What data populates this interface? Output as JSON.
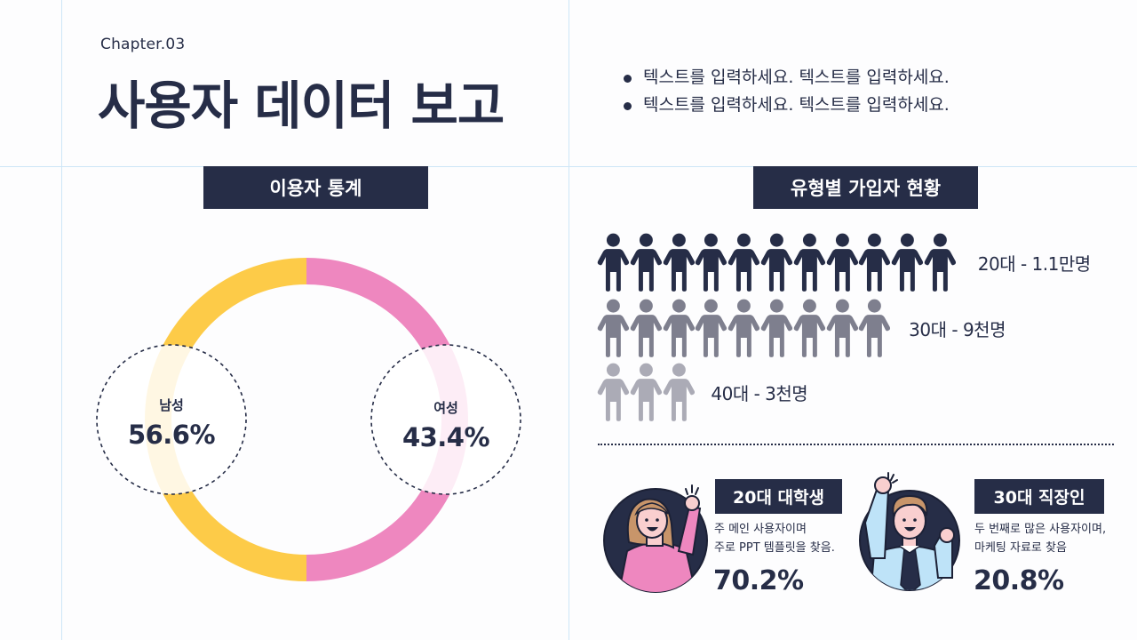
{
  "header": {
    "chapter": "Chapter.03",
    "title": "사용자 데이터 보고",
    "bullets": [
      "텍스트를 입력하세요. 텍스트를 입력하세요.",
      "텍스트를 입력하세요. 텍스트를 입력하세요."
    ]
  },
  "user_stats": {
    "section_title": "이용자 통계",
    "male": {
      "label": "남성",
      "value": "56.6%"
    },
    "female": {
      "label": "여성",
      "value": "43.4%"
    }
  },
  "signup_by_type": {
    "section_title": "유형별 가입자 현황",
    "rows": [
      {
        "label": "20대 - 1.1만명",
        "count": 11,
        "color": "#262D47"
      },
      {
        "label": "30대 - 9천명",
        "count": 9,
        "color": "#7E7F8E"
      },
      {
        "label": "40대 - 3천명",
        "count": 3,
        "color": "#ABABB6"
      }
    ]
  },
  "profiles": [
    {
      "badge": "20대 대학생",
      "desc_line1": "주 메인 사용자이며",
      "desc_line2": "주로 PPT 템플릿을 찾음.",
      "percent": "70.2%",
      "icon": "woman-cheering-icon"
    },
    {
      "badge": "30대 직장인",
      "desc_line1": "두 번째로 많은 사용자이며,",
      "desc_line2": "마케팅 자료로 찾음",
      "percent": "20.8%",
      "icon": "man-cheering-icon"
    }
  ],
  "colors": {
    "navy": "#262D47",
    "male_yellow": "#FDCB48",
    "female_pink": "#EE87BF",
    "guide_blue": "#CDE6F7"
  },
  "chart_data": [
    {
      "type": "pie",
      "title": "이용자 통계",
      "categories": [
        "남성",
        "여성"
      ],
      "values": [
        56.6,
        43.4
      ],
      "colors": [
        "#FDCB48",
        "#EE87BF"
      ]
    },
    {
      "type": "bar",
      "title": "유형별 가입자 현황",
      "categories": [
        "20대",
        "30대",
        "40대"
      ],
      "values": [
        11000,
        9000,
        3000
      ],
      "labels": [
        "20대 - 1.1만명",
        "30대 - 9천명",
        "40대 - 3천명"
      ]
    }
  ]
}
